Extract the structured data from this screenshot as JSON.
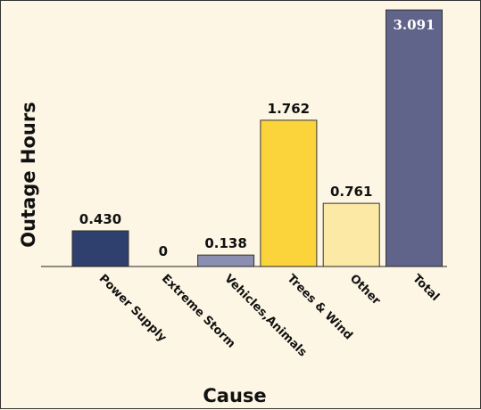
{
  "chart_data": {
    "type": "bar",
    "title": "",
    "xlabel": "Cause",
    "ylabel": "Outage Hours",
    "ylim": [
      0,
      3.2
    ],
    "grid": false,
    "categories": [
      "Power Supply",
      "Extreme Storm",
      "Vehicles,Animals",
      "Trees & Wind",
      "Other",
      "Total"
    ],
    "values": [
      0.43,
      0,
      0.138,
      1.762,
      0.761,
      3.091
    ],
    "value_labels": [
      "0.430",
      "0",
      "0.138",
      "1.762",
      "0.761",
      "3.091"
    ],
    "colors": [
      "#2f3f6e",
      "#2f3f6e",
      "#8a8fb2",
      "#fbd43c",
      "#fde9a6",
      "#60648a"
    ]
  }
}
